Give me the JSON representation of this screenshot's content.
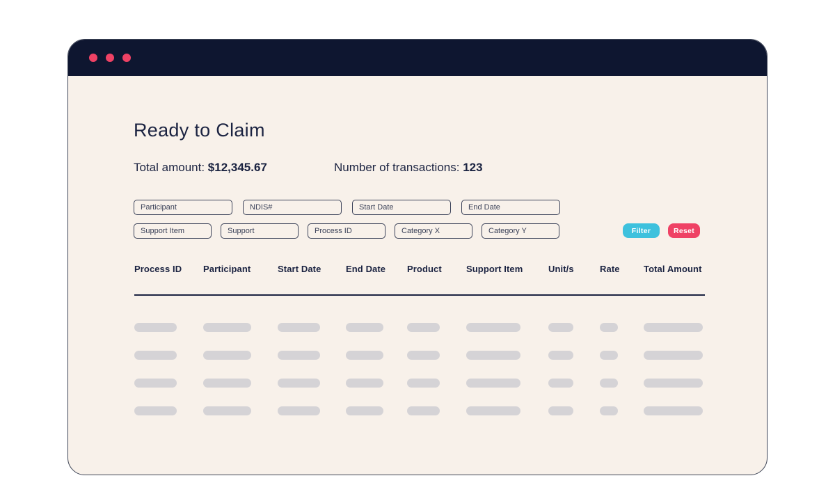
{
  "page": {
    "title": "Ready to Claim"
  },
  "stats": {
    "total_amount_label": "Total amount: ",
    "total_amount_value": "$12,345.67",
    "transactions_label": "Number of transactions: ",
    "transactions_value": "123"
  },
  "filters": {
    "row1": [
      {
        "placeholder": "Participant"
      },
      {
        "placeholder": "NDIS#"
      },
      {
        "placeholder": "Start Date"
      },
      {
        "placeholder": "End Date"
      }
    ],
    "row2": [
      {
        "placeholder": "Support Item"
      },
      {
        "placeholder": "Support"
      },
      {
        "placeholder": "Process ID"
      },
      {
        "placeholder": "Category X"
      },
      {
        "placeholder": "Category Y"
      }
    ],
    "filter_button": "Filter",
    "reset_button": "Reset"
  },
  "table": {
    "columns": [
      "Process ID",
      "Participant",
      "Start Date",
      "End Date",
      "Product",
      "Support Item",
      "Unit/s",
      "Rate",
      "Total Amount"
    ],
    "skeleton_row_count": 4,
    "state": "loading"
  },
  "colors": {
    "titlebar_bg": "#0E1630",
    "window_bg": "#F8F1EA",
    "accent_cyan": "#3EC1DD",
    "accent_pink": "#EF4265",
    "text_navy": "#1B2341",
    "skeleton_gray": "#D5D3D6"
  }
}
